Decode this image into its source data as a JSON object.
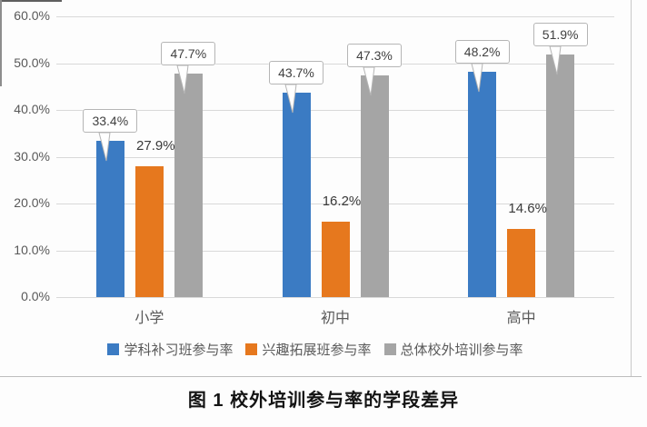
{
  "figure": {
    "caption": "图 1  校外培训参与率的学段差异"
  },
  "colors": {
    "series_blue": "#3B7BC3",
    "series_orange": "#E6781E",
    "series_gray": "#A5A5A5",
    "gridline": "#D9D9D9",
    "axis_text": "#595959",
    "callout_border": "#B5B5B5",
    "label_text": "#404040"
  },
  "chart_data": {
    "type": "bar",
    "title": "",
    "xlabel": "",
    "ylabel": "",
    "categories": [
      "小学",
      "初中",
      "高中"
    ],
    "series": [
      {
        "name": "学科补习班参与率",
        "color": "#3B7BC3",
        "values": [
          33.4,
          43.7,
          48.2
        ],
        "labels": [
          "33.4%",
          "43.7%",
          "48.2%"
        ],
        "label_style": "callout"
      },
      {
        "name": "兴趣拓展班参与率",
        "color": "#E6781E",
        "values": [
          27.9,
          16.2,
          14.6
        ],
        "labels": [
          "27.9%",
          "16.2%",
          "14.6%"
        ],
        "label_style": "plain"
      },
      {
        "name": "总体校外培训参与率",
        "color": "#A5A5A5",
        "values": [
          47.7,
          47.3,
          51.9
        ],
        "labels": [
          "47.7%",
          "47.3%",
          "51.9%"
        ],
        "label_style": "callout"
      }
    ],
    "ylim": [
      0,
      60
    ],
    "ytick_step": 10,
    "ytick_labels": [
      "0.0%",
      "10.0%",
      "20.0%",
      "30.0%",
      "40.0%",
      "50.0%",
      "60.0%"
    ],
    "grid": true,
    "legend_position": "bottom"
  }
}
